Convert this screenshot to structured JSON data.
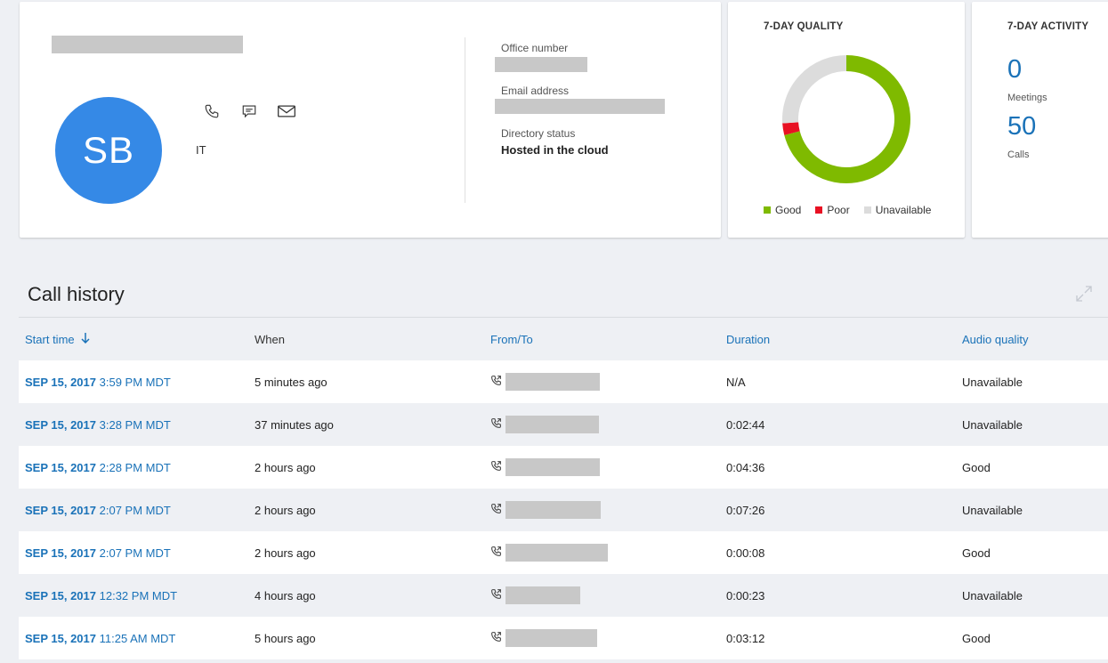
{
  "profile": {
    "initials": "SB",
    "department": "IT",
    "fields": [
      {
        "label": "Office number"
      },
      {
        "label": "Email address"
      },
      {
        "label": "Directory status",
        "value": "Hosted in the cloud"
      }
    ]
  },
  "quality": {
    "title": "7-DAY QUALITY",
    "legend": [
      {
        "label": "Good",
        "color": "#7fba00"
      },
      {
        "label": "Poor",
        "color": "#e81123"
      },
      {
        "label": "Unavailable",
        "color": "#dcdcdc"
      }
    ],
    "donut": {
      "good": 0.71,
      "poor": 0.03,
      "unavailable": 0.26
    }
  },
  "activity": {
    "title": "7-DAY ACTIVITY",
    "meetings_value": "0",
    "meetings_label": "Meetings",
    "calls_value": "50",
    "calls_label": "Calls"
  },
  "call_history": {
    "title": "Call history",
    "columns": [
      "Start time",
      "When",
      "From/To",
      "Duration",
      "Audio quality"
    ],
    "rows": [
      {
        "date": "SEP 15, 2017",
        "time": "3:59 PM MDT",
        "when": "5 minutes ago",
        "duration": "N/A",
        "quality": "Unavailable"
      },
      {
        "date": "SEP 15, 2017",
        "time": "3:28 PM MDT",
        "when": "37 minutes ago",
        "duration": "0:02:44",
        "quality": "Unavailable"
      },
      {
        "date": "SEP 15, 2017",
        "time": "2:28 PM MDT",
        "when": "2 hours ago",
        "duration": "0:04:36",
        "quality": "Good"
      },
      {
        "date": "SEP 15, 2017",
        "time": "2:07 PM MDT",
        "when": "2 hours ago",
        "duration": "0:07:26",
        "quality": "Unavailable"
      },
      {
        "date": "SEP 15, 2017",
        "time": "2:07 PM MDT",
        "when": "2 hours ago",
        "duration": "0:00:08",
        "quality": "Good"
      },
      {
        "date": "SEP 15, 2017",
        "time": "12:32 PM MDT",
        "when": "4 hours ago",
        "duration": "0:00:23",
        "quality": "Unavailable"
      },
      {
        "date": "SEP 15, 2017",
        "time": "11:25 AM MDT",
        "when": "5 hours ago",
        "duration": "0:03:12",
        "quality": "Good"
      }
    ]
  }
}
